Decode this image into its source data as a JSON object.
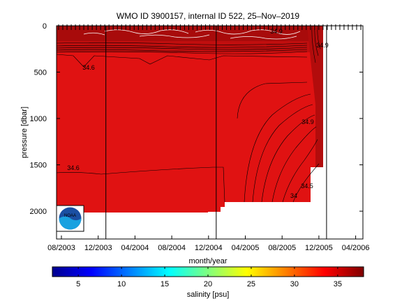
{
  "chart_data": {
    "type": "heatmap",
    "title": "WMO ID 3900157, internal ID 522, 25–Nov–2019",
    "xlabel": "month/year",
    "ylabel": "pressure [dbar]",
    "x_ticks": [
      "08/2003",
      "12/2003",
      "04/2004",
      "08/2004",
      "12/2004",
      "04/2005",
      "08/2005",
      "12/2005",
      "04/2006"
    ],
    "y_ticks": [
      "0",
      "500",
      "1000",
      "1500",
      "2000"
    ],
    "y_tick_values": [
      0,
      500,
      1000,
      1500,
      2000
    ],
    "ylim": [
      2300,
      0
    ],
    "y_reversed": true,
    "colorbar": {
      "label": "salinity [psu]",
      "ticks": [
        "5",
        "10",
        "15",
        "20",
        "25",
        "30",
        "35"
      ],
      "tick_values": [
        5,
        10,
        15,
        20,
        25,
        30,
        35
      ],
      "range": [
        2,
        38
      ],
      "colormap": "jet"
    },
    "field_value": 35,
    "field_color": "#e01212",
    "surface_color": "#a80b0b",
    "contour_labels": [
      "34.9",
      "34.6",
      "34.6",
      "34.9",
      "34.5",
      "34",
      "34.9"
    ],
    "section_boundaries_months": [
      "12/2003",
      "12/2004",
      "12/2005"
    ],
    "profile_count": 73
  },
  "logo": {
    "text": "NOAA"
  },
  "colors": {
    "axis": "#000000",
    "background": "#ffffff"
  }
}
